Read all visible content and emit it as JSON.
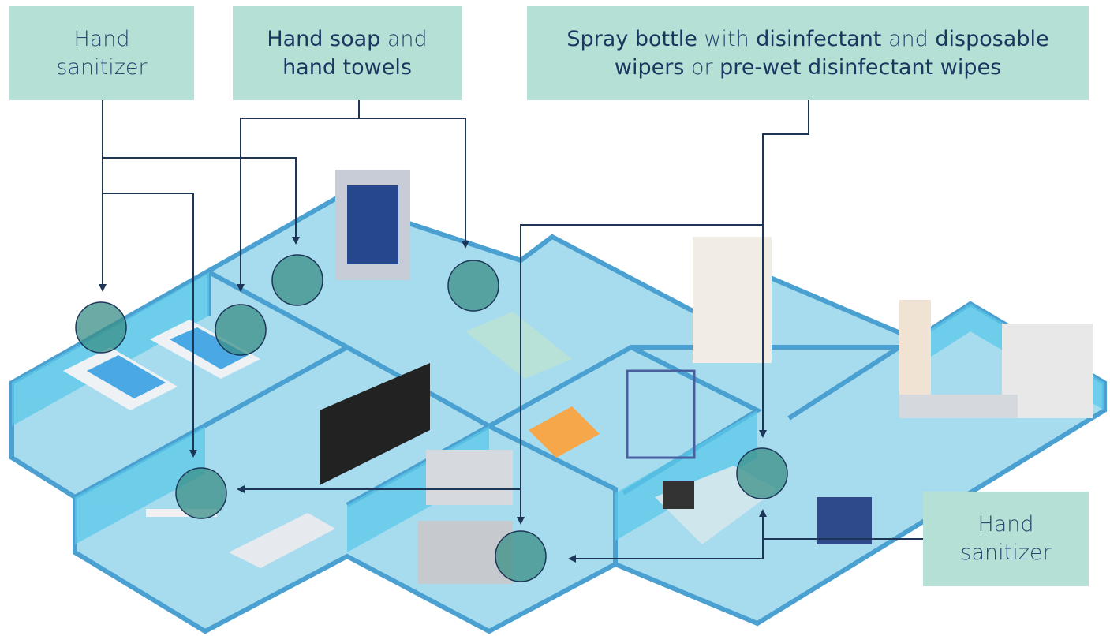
{
  "labels": [
    {
      "lines": [
        [
          {
            "text": "Hand",
            "bold": false
          }
        ],
        [
          {
            "text": "sanitizer",
            "bold": false
          }
        ]
      ]
    },
    {
      "lines": [
        [
          {
            "text": "Hand soap",
            "bold": true
          },
          {
            "text": " and",
            "bold": false
          }
        ],
        [
          {
            "text": "hand towels",
            "bold": true
          }
        ]
      ]
    },
    {
      "lines": [
        [
          {
            "text": "Spray bottle",
            "bold": true
          },
          {
            "text": " with ",
            "bold": false
          },
          {
            "text": "disinfectant",
            "bold": true
          },
          {
            "text": " and ",
            "bold": false
          },
          {
            "text": "disposable",
            "bold": true
          }
        ],
        [
          {
            "text": "wipers",
            "bold": true
          },
          {
            "text": " or ",
            "bold": false
          },
          {
            "text": "pre-wet disinfectant wipes",
            "bold": true
          }
        ]
      ]
    },
    {
      "lines": [
        [
          {
            "text": "Hand",
            "bold": false
          }
        ],
        [
          {
            "text": "sanitizer",
            "bold": false
          }
        ]
      ]
    }
  ]
}
